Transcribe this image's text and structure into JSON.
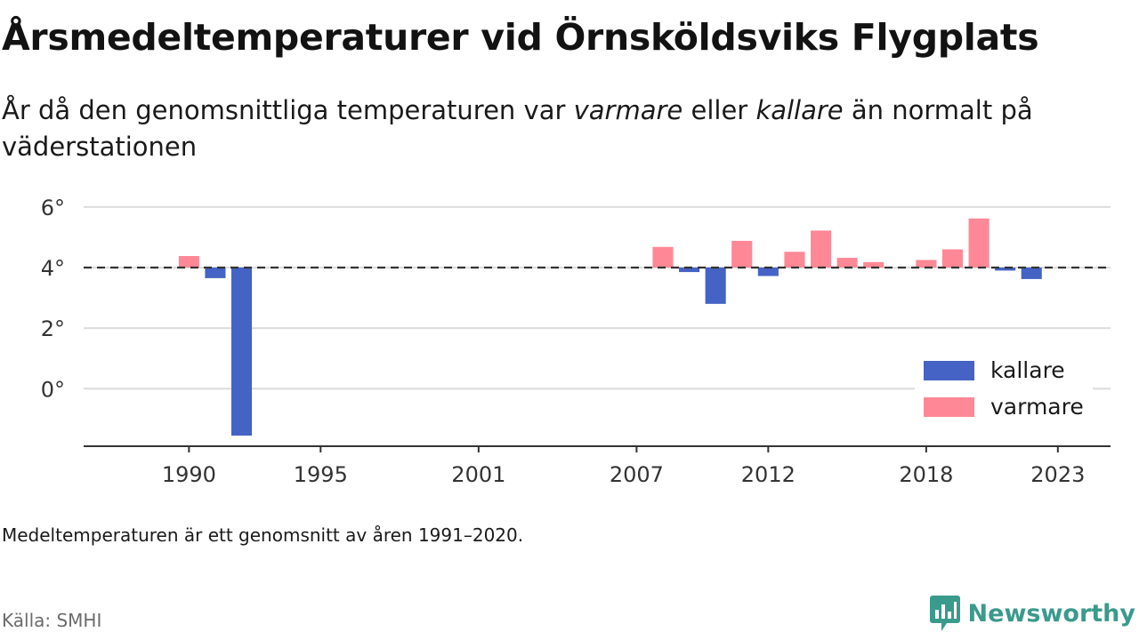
{
  "title": "Årsmedeltemperaturer vid Örnsköldsviks Flygplats",
  "subtitle": {
    "part1": "År då den genomsnittliga temperaturen var ",
    "warm_word": "varmare",
    "part2": " eller ",
    "cold_word": "kallare",
    "part3": " än normalt på väderstationen"
  },
  "note": "Medeltemperaturen är ett genomsnitt av åren 1991–2020.",
  "source": "Källa: SMHI",
  "brand": {
    "name": "Newsworthy",
    "logo_icon": "newsworthy-logo-icon"
  },
  "chart_data": {
    "type": "bar",
    "baseline": 4.0,
    "baseline_style": "dashed",
    "x_ticks": [
      1990,
      1995,
      2001,
      2007,
      2012,
      2018,
      2023
    ],
    "y_ticks": [
      0,
      2,
      4,
      6
    ],
    "y_tick_labels": [
      "0°",
      "2°",
      "4°",
      "6°"
    ],
    "xlim": [
      1986,
      2025
    ],
    "ylim": [
      -1.9,
      6.2
    ],
    "grid": true,
    "legend_position": "bottom-right",
    "colors": {
      "kallare": "#4463c4",
      "varmare": "#ff8896"
    },
    "series": [
      {
        "name": "kallare",
        "values": [
          {
            "x": 1991,
            "y": 3.65
          },
          {
            "x": 1992,
            "y": -1.55
          },
          {
            "x": 2009,
            "y": 3.85
          },
          {
            "x": 2010,
            "y": 2.8
          },
          {
            "x": 2012,
            "y": 3.72
          },
          {
            "x": 2021,
            "y": 3.9
          },
          {
            "x": 2022,
            "y": 3.62
          }
        ]
      },
      {
        "name": "varmare",
        "values": [
          {
            "x": 1990,
            "y": 4.38
          },
          {
            "x": 2008,
            "y": 4.68
          },
          {
            "x": 2011,
            "y": 4.88
          },
          {
            "x": 2013,
            "y": 4.52
          },
          {
            "x": 2014,
            "y": 5.22
          },
          {
            "x": 2015,
            "y": 4.32
          },
          {
            "x": 2016,
            "y": 4.18
          },
          {
            "x": 2018,
            "y": 4.25
          },
          {
            "x": 2019,
            "y": 4.6
          },
          {
            "x": 2020,
            "y": 5.62
          }
        ]
      }
    ]
  }
}
